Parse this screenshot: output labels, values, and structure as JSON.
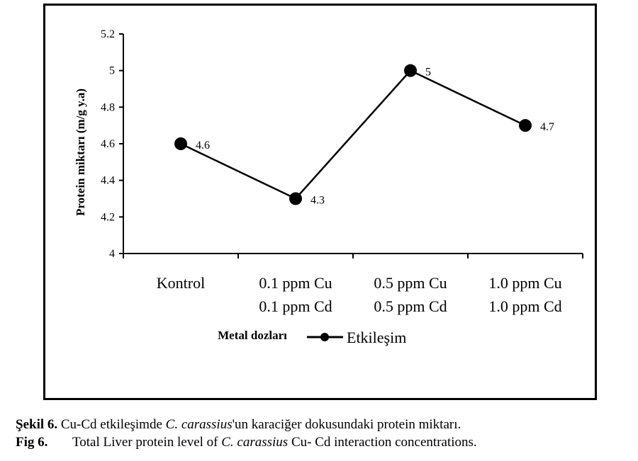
{
  "chart_data": {
    "type": "line",
    "categories": [
      [
        "Kontrol",
        ""
      ],
      [
        "0.1 ppm Cu",
        "0.1 ppm Cd"
      ],
      [
        "0.5 ppm Cu",
        "0.5 ppm Cd"
      ],
      [
        "1.0 ppm Cu",
        "1.0 ppm Cd"
      ]
    ],
    "series": [
      {
        "name": "Etkileşim",
        "values": [
          4.6,
          4.3,
          5,
          4.7
        ],
        "labels": [
          "4.6",
          "4.3",
          "5",
          "4.7"
        ]
      }
    ],
    "xlabel": "Metal dozları",
    "ylabel": "Protein miktarı (m/g y.a)",
    "ylim": [
      4,
      5.2
    ],
    "yticks": [
      "4",
      "4.2",
      "4.4",
      "4.6",
      "4.8",
      "5",
      "5.2"
    ],
    "grid": false,
    "legend": "bottom",
    "color": "#000000"
  },
  "caption": {
    "line1_prefix": "Şekil 6.",
    "line1_a": " Cu-Cd etkileşimde ",
    "line1_species": "C. carassius",
    "line1_b": "'un karaciğer dokusundaki protein miktarı.",
    "line2_prefix": "Fig 6.",
    "line2_a": "Total Liver protein level of ",
    "line2_species": "C. carassius",
    "line2_b": " Cu- Cd interaction concentrations."
  }
}
